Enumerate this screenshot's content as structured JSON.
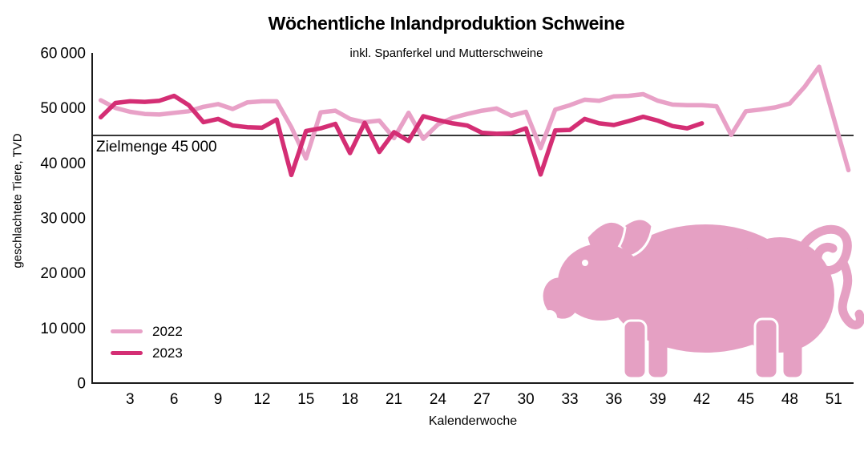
{
  "page": {
    "background": "#ffffff"
  },
  "chart_data": {
    "type": "line",
    "title": "Wöchentliche Inlandproduktion Schweine",
    "subtitle": "inkl. Spanferkel und Mutterschweine",
    "xlabel": "Kalenderwoche",
    "ylabel": "geschlachtete Tiere, TVD",
    "xlim": [
      1,
      52
    ],
    "ylim": [
      0,
      60000
    ],
    "grid": false,
    "legend_position": "inside-bottom-left",
    "xticks": [
      3,
      6,
      9,
      12,
      15,
      18,
      21,
      24,
      27,
      30,
      33,
      36,
      39,
      42,
      45,
      48,
      51
    ],
    "yticks": [
      {
        "value": 0,
        "label": "0"
      },
      {
        "value": 10000,
        "label": "10 000"
      },
      {
        "value": 20000,
        "label": "20 000"
      },
      {
        "value": 30000,
        "label": "30 000"
      },
      {
        "value": 40000,
        "label": "40 000"
      },
      {
        "value": 50000,
        "label": "50 000"
      },
      {
        "value": 60000,
        "label": "60 000"
      }
    ],
    "target": {
      "value": 45000,
      "label": "Zielmenge 45 000",
      "color": "#1a1a1a"
    },
    "series": [
      {
        "name": "2022",
        "color": "#E8A1C7",
        "start_week": 1,
        "values": [
          51400,
          50000,
          49300,
          48900,
          48800,
          49100,
          49400,
          50200,
          50700,
          49800,
          51000,
          51200,
          51200,
          46500,
          40800,
          49200,
          49500,
          48000,
          47400,
          47700,
          44500,
          49100,
          44400,
          47000,
          48200,
          48900,
          49500,
          49900,
          48600,
          49300,
          42700,
          49700,
          50500,
          51500,
          51300,
          52100,
          52200,
          52500,
          51300,
          50600,
          50500,
          50500,
          50300,
          45100,
          49400,
          49700,
          50100,
          50800,
          53800,
          57500,
          48100,
          38700
        ]
      },
      {
        "name": "2023",
        "color": "#D42E74",
        "start_week": 1,
        "values": [
          48300,
          50900,
          51200,
          51100,
          51300,
          52200,
          50500,
          47400,
          48000,
          46800,
          46500,
          46400,
          47900,
          37800,
          45800,
          46300,
          47100,
          41800,
          47300,
          42000,
          45600,
          44000,
          48500,
          47800,
          47200,
          46800,
          45500,
          45300,
          45400,
          46300,
          37900,
          45900,
          46000,
          48000,
          47200,
          46900,
          47600,
          48400,
          47700,
          46700,
          46300,
          47200
        ]
      }
    ],
    "decoration": {
      "name": "pig-silhouette",
      "color": "#E5A0C3"
    },
    "axis_color": "#1a1a1a"
  }
}
